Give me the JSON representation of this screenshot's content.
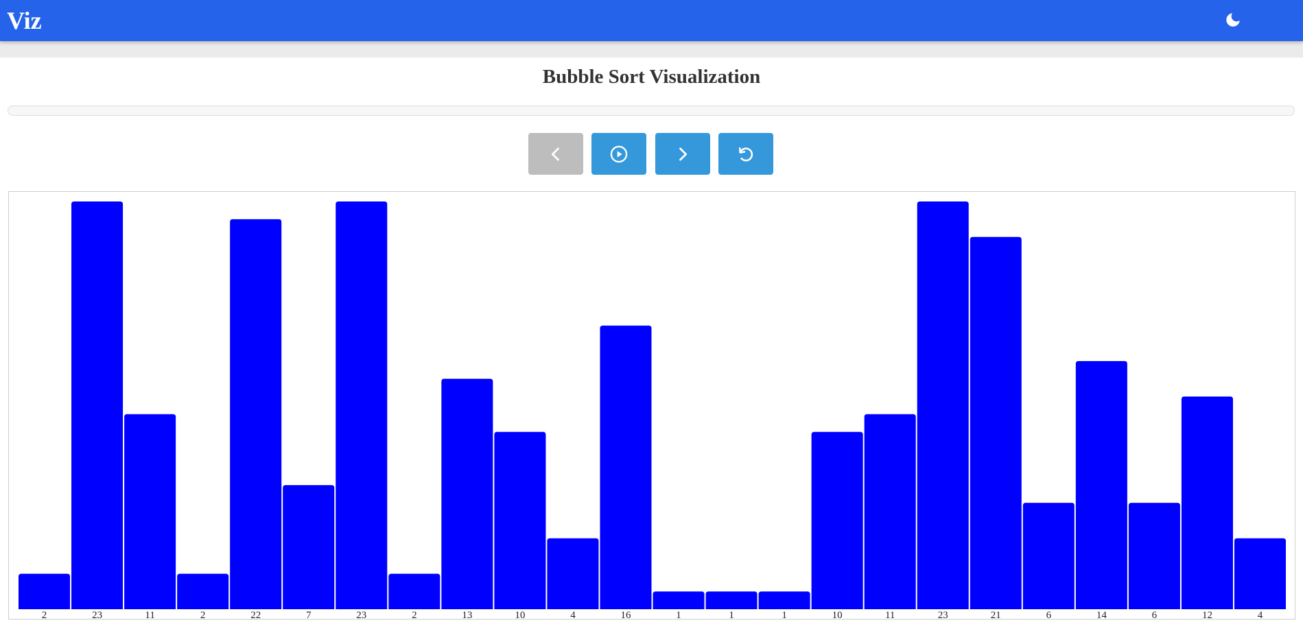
{
  "header": {
    "brand": "Viz",
    "theme_icon": "moon-icon"
  },
  "page": {
    "title": "Bubble Sort Visualization"
  },
  "progress": {
    "value": 0
  },
  "controls": {
    "prev_icon": "chevron-left-icon",
    "prev_enabled": false,
    "play_icon": "play-circle-icon",
    "next_icon": "chevron-right-icon",
    "reset_icon": "rotate-ccw-icon"
  },
  "colors": {
    "header": "#2563eb",
    "button": "#3498db",
    "button_disabled": "#bdbdbd",
    "bar": "#0000ff"
  },
  "chart_data": {
    "type": "bar",
    "values": [
      2,
      23,
      11,
      2,
      22,
      7,
      23,
      2,
      13,
      10,
      4,
      16,
      1,
      1,
      1,
      10,
      11,
      23,
      21,
      6,
      14,
      6,
      12,
      4
    ],
    "categories": [
      "2",
      "23",
      "11",
      "2",
      "22",
      "7",
      "23",
      "2",
      "13",
      "10",
      "4",
      "16",
      "1",
      "1",
      "1",
      "10",
      "11",
      "23",
      "21",
      "6",
      "14",
      "6",
      "12",
      "4"
    ],
    "ylim": [
      0,
      23
    ],
    "bar_color": "#0000ff"
  }
}
